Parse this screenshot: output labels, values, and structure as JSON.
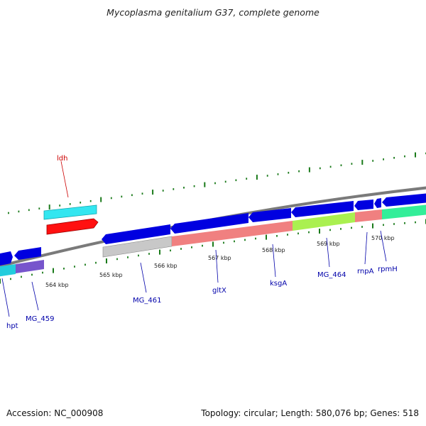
{
  "title": "Mycoplasma genitalium G37, complete genome",
  "footer": {
    "accession": "Accession: NC_000908",
    "summary": "Topology: circular; Length: 580,076 bp; Genes: 518"
  },
  "colors": {
    "forward_gene": "#0000dd",
    "backbone": "#808080",
    "tick": "#1a7a1a",
    "label_blue": "#0000aa",
    "label_red": "#cc0000"
  },
  "scale_ticks": [
    {
      "label": "564 kbp"
    },
    {
      "label": "565 kbp"
    },
    {
      "label": "566 kbp"
    },
    {
      "label": "567 kbp"
    },
    {
      "label": "568 kbp"
    },
    {
      "label": "569 kbp"
    },
    {
      "label": "570 kbp"
    }
  ],
  "gene_labels": [
    {
      "name": "ldh",
      "color": "#cc0000"
    },
    {
      "name": "hpt",
      "color": "#0000aa"
    },
    {
      "name": "MG_459",
      "color": "#0000aa"
    },
    {
      "name": "MG_461",
      "color": "#0000aa"
    },
    {
      "name": "gltX",
      "color": "#0000aa"
    },
    {
      "name": "ksgA",
      "color": "#0000aa"
    },
    {
      "name": "MG_464",
      "color": "#0000aa"
    },
    {
      "name": "rnpA",
      "color": "#0000aa"
    },
    {
      "name": "rpmH",
      "color": "#0000aa"
    }
  ]
}
